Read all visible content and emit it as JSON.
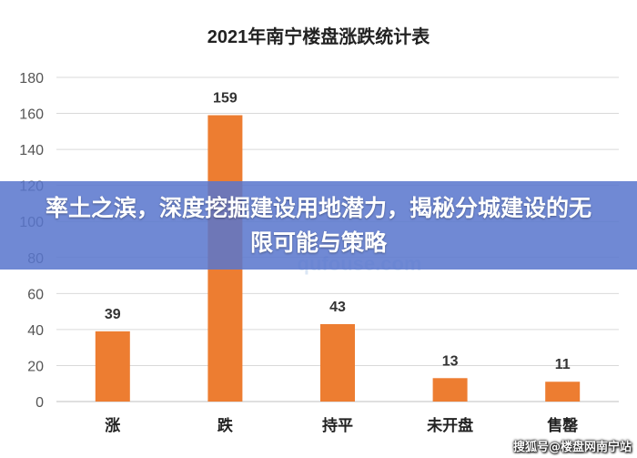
{
  "chart_data": {
    "type": "bar",
    "title": "2021年南宁楼盘涨跌统计表",
    "categories": [
      "涨",
      "跌",
      "持平",
      "未开盘",
      "售罄"
    ],
    "values": [
      39,
      159,
      43,
      13,
      11
    ],
    "ylim": [
      0,
      180
    ],
    "yticks": [
      0,
      20,
      40,
      60,
      80,
      100,
      120,
      140,
      160,
      180
    ],
    "xlabel": "",
    "ylabel": "",
    "grid": true,
    "legend": "none",
    "bar_color": "#ed7d31"
  },
  "watermark": "qufouse.com",
  "banner": {
    "text": "率土之滨，深度挖掘建设用地潜力，揭秘分城建设的无限可能与策略"
  },
  "credit": "搜狐号@楼盘网南宁站"
}
